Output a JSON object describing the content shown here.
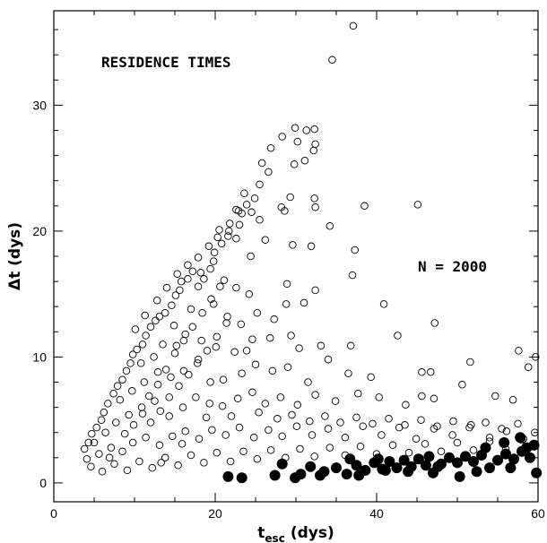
{
  "chart_data": {
    "type": "scatter",
    "title": "",
    "xlabel_main": "t",
    "xlabel_sub": "esc",
    "xlabel_unit": "(dys)",
    "ylabel": "Δt (dys)",
    "xlim": [
      0,
      60
    ],
    "ylim": [
      -1.5,
      37.5
    ],
    "x_ticks": [
      0,
      20,
      40,
      60
    ],
    "y_ticks": [
      0,
      10,
      20,
      30
    ],
    "x_tick_labels": [
      "0",
      "20",
      "40",
      "60"
    ],
    "y_tick_labels": [
      "0",
      "10",
      "20",
      "30"
    ],
    "grid": false,
    "annotations": {
      "residence_label": "RESIDENCE TIMES",
      "n_label": "N = 2000"
    },
    "colors": {
      "ink": "#000000",
      "background": "#ffffff"
    },
    "series": [
      {
        "marker": "open-circle",
        "points": [
          [
            37.1,
            36.3
          ],
          [
            34.5,
            33.6
          ],
          [
            29.9,
            28.2
          ],
          [
            31.3,
            28.0
          ],
          [
            32.3,
            28.1
          ],
          [
            30.2,
            27.1
          ],
          [
            28.3,
            27.5
          ],
          [
            26.9,
            26.6
          ],
          [
            32.4,
            26.9
          ],
          [
            32.2,
            26.4
          ],
          [
            31.1,
            25.6
          ],
          [
            29.8,
            25.3
          ],
          [
            25.8,
            25.4
          ],
          [
            26.6,
            24.7
          ],
          [
            25.5,
            23.7
          ],
          [
            24.9,
            22.6
          ],
          [
            29.3,
            22.7
          ],
          [
            23.6,
            23.0
          ],
          [
            32.3,
            22.6
          ],
          [
            32.4,
            21.9
          ],
          [
            28.2,
            21.9
          ],
          [
            28.6,
            21.6
          ],
          [
            38.5,
            22.0
          ],
          [
            45.1,
            22.1
          ],
          [
            24.5,
            21.5
          ],
          [
            23.3,
            21.4
          ],
          [
            22.6,
            21.7
          ],
          [
            25.5,
            20.9
          ],
          [
            23.0,
            20.5
          ],
          [
            21.7,
            20.0
          ],
          [
            21.6,
            19.6
          ],
          [
            20.8,
            19.0
          ],
          [
            20.3,
            19.5
          ],
          [
            19.9,
            18.3
          ],
          [
            22.6,
            19.4
          ],
          [
            26.2,
            19.3
          ],
          [
            29.6,
            18.9
          ],
          [
            31.9,
            18.8
          ],
          [
            34.2,
            20.4
          ],
          [
            37.3,
            18.5
          ],
          [
            24.4,
            18.0
          ],
          [
            19.8,
            17.6
          ],
          [
            19.4,
            17.0
          ],
          [
            18.2,
            16.7
          ],
          [
            17.2,
            16.8
          ],
          [
            16.6,
            16.2
          ],
          [
            15.8,
            16.0
          ],
          [
            15.6,
            15.3
          ],
          [
            17.9,
            15.6
          ],
          [
            18.6,
            16.2
          ],
          [
            21.1,
            16.1
          ],
          [
            22.6,
            15.5
          ],
          [
            24.2,
            15.0
          ],
          [
            28.9,
            15.8
          ],
          [
            32.4,
            15.3
          ],
          [
            37.0,
            16.5
          ],
          [
            15.1,
            14.9
          ],
          [
            14.6,
            14.1
          ],
          [
            13.8,
            13.5
          ],
          [
            13.1,
            13.2
          ],
          [
            12.6,
            12.9
          ],
          [
            12.0,
            12.4
          ],
          [
            14.9,
            12.5
          ],
          [
            17.0,
            13.8
          ],
          [
            19.8,
            14.2
          ],
          [
            21.5,
            13.2
          ],
          [
            23.2,
            12.6
          ],
          [
            25.2,
            13.5
          ],
          [
            27.3,
            13.0
          ],
          [
            28.8,
            14.2
          ],
          [
            31.0,
            14.3
          ],
          [
            29.4,
            11.7
          ],
          [
            26.8,
            11.5
          ],
          [
            24.6,
            11.4
          ],
          [
            40.9,
            14.2
          ],
          [
            11.4,
            11.7
          ],
          [
            11.0,
            11.0
          ],
          [
            10.3,
            10.6
          ],
          [
            9.8,
            10.2
          ],
          [
            10.8,
            9.5
          ],
          [
            12.4,
            10.0
          ],
          [
            13.5,
            11.0
          ],
          [
            15.2,
            10.9
          ],
          [
            16.3,
            11.8
          ],
          [
            18.3,
            11.3
          ],
          [
            20.1,
            10.8
          ],
          [
            22.4,
            10.4
          ],
          [
            23.9,
            10.5
          ],
          [
            30.4,
            10.7
          ],
          [
            33.1,
            10.9
          ],
          [
            36.8,
            10.9
          ],
          [
            42.6,
            11.7
          ],
          [
            47.2,
            12.7
          ],
          [
            9.5,
            9.5
          ],
          [
            9.0,
            8.9
          ],
          [
            8.5,
            8.2
          ],
          [
            7.9,
            7.7
          ],
          [
            7.4,
            7.1
          ],
          [
            8.2,
            6.6
          ],
          [
            9.7,
            7.3
          ],
          [
            11.2,
            8.0
          ],
          [
            12.9,
            8.8
          ],
          [
            14.5,
            8.4
          ],
          [
            16.1,
            8.9
          ],
          [
            17.8,
            9.5
          ],
          [
            19.4,
            8.0
          ],
          [
            21.0,
            8.2
          ],
          [
            23.3,
            8.7
          ],
          [
            25.0,
            9.4
          ],
          [
            27.1,
            8.9
          ],
          [
            29.0,
            9.2
          ],
          [
            31.5,
            8.0
          ],
          [
            34.0,
            9.8
          ],
          [
            36.5,
            8.7
          ],
          [
            39.3,
            8.4
          ],
          [
            45.6,
            8.8
          ],
          [
            46.7,
            8.8
          ],
          [
            51.6,
            9.6
          ],
          [
            57.6,
            10.5
          ],
          [
            59.7,
            10.0
          ],
          [
            6.7,
            6.3
          ],
          [
            6.2,
            5.6
          ],
          [
            5.9,
            5.0
          ],
          [
            5.3,
            4.4
          ],
          [
            4.7,
            3.9
          ],
          [
            5.0,
            3.2
          ],
          [
            6.4,
            4.0
          ],
          [
            7.7,
            4.8
          ],
          [
            9.3,
            5.4
          ],
          [
            10.9,
            6.0
          ],
          [
            12.5,
            6.5
          ],
          [
            14.3,
            5.3
          ],
          [
            16.0,
            6.0
          ],
          [
            17.6,
            6.8
          ],
          [
            19.3,
            6.3
          ],
          [
            20.9,
            6.1
          ],
          [
            22.8,
            6.7
          ],
          [
            24.6,
            7.2
          ],
          [
            26.2,
            6.3
          ],
          [
            28.1,
            6.8
          ],
          [
            30.2,
            6.2
          ],
          [
            32.4,
            7.0
          ],
          [
            34.9,
            6.5
          ],
          [
            37.7,
            7.1
          ],
          [
            40.3,
            6.8
          ],
          [
            43.6,
            6.2
          ],
          [
            45.6,
            6.9
          ],
          [
            47.1,
            6.7
          ],
          [
            50.6,
            7.8
          ],
          [
            54.7,
            6.9
          ],
          [
            56.9,
            6.6
          ],
          [
            58.8,
            9.2
          ],
          [
            4.3,
            3.2
          ],
          [
            3.8,
            2.7
          ],
          [
            4.1,
            1.9
          ],
          [
            4.6,
            1.3
          ],
          [
            5.6,
            2.3
          ],
          [
            6.9,
            2.0
          ],
          [
            8.5,
            2.5
          ],
          [
            9.8,
            3.2
          ],
          [
            11.4,
            3.6
          ],
          [
            13.1,
            3.0
          ],
          [
            14.7,
            3.7
          ],
          [
            16.3,
            4.1
          ],
          [
            18.0,
            3.5
          ],
          [
            19.6,
            4.2
          ],
          [
            21.3,
            3.8
          ],
          [
            23.0,
            4.4
          ],
          [
            24.8,
            3.6
          ],
          [
            26.6,
            4.2
          ],
          [
            28.3,
            3.7
          ],
          [
            30.1,
            4.5
          ],
          [
            32.0,
            3.8
          ],
          [
            34.0,
            4.3
          ],
          [
            36.1,
            3.6
          ],
          [
            38.3,
            4.5
          ],
          [
            40.6,
            3.8
          ],
          [
            42.8,
            4.4
          ],
          [
            44.9,
            3.5
          ],
          [
            47.1,
            4.3
          ],
          [
            49.4,
            3.8
          ],
          [
            51.7,
            4.6
          ],
          [
            54.0,
            3.6
          ],
          [
            56.1,
            4.1
          ],
          [
            58.2,
            3.5
          ],
          [
            59.6,
            4.0
          ],
          [
            6.0,
            0.9
          ],
          [
            7.5,
            1.5
          ],
          [
            9.1,
            1.0
          ],
          [
            10.6,
            1.7
          ],
          [
            12.2,
            1.2
          ],
          [
            13.8,
            2.0
          ],
          [
            15.4,
            1.4
          ],
          [
            17.0,
            2.2
          ],
          [
            18.6,
            1.6
          ],
          [
            20.2,
            2.4
          ],
          [
            21.9,
            1.7
          ],
          [
            23.5,
            2.5
          ],
          [
            25.2,
            1.9
          ],
          [
            26.9,
            2.6
          ],
          [
            28.7,
            2.0
          ],
          [
            30.5,
            2.7
          ],
          [
            32.3,
            2.1
          ],
          [
            34.2,
            2.8
          ],
          [
            36.1,
            2.2
          ],
          [
            38.0,
            2.9
          ],
          [
            40.0,
            2.3
          ],
          [
            42.0,
            3.0
          ],
          [
            44.0,
            2.4
          ],
          [
            46.0,
            3.1
          ],
          [
            48.0,
            2.5
          ],
          [
            50.0,
            3.2
          ],
          [
            52.0,
            2.6
          ],
          [
            54.0,
            3.3
          ],
          [
            56.0,
            2.7
          ],
          [
            58.0,
            3.4
          ],
          [
            11.8,
            6.9
          ],
          [
            12.9,
            7.8
          ],
          [
            13.9,
            9.0
          ],
          [
            15.0,
            10.3
          ],
          [
            16.1,
            11.3
          ],
          [
            17.2,
            12.4
          ],
          [
            18.4,
            13.5
          ],
          [
            19.5,
            14.6
          ],
          [
            20.6,
            15.6
          ],
          [
            12.0,
            4.8
          ],
          [
            13.2,
            5.7
          ],
          [
            14.3,
            6.8
          ],
          [
            15.5,
            7.7
          ],
          [
            16.7,
            8.6
          ],
          [
            17.9,
            9.8
          ],
          [
            19.0,
            10.5
          ],
          [
            20.2,
            11.6
          ],
          [
            21.4,
            12.7
          ],
          [
            8.8,
            3.9
          ],
          [
            9.9,
            4.6
          ],
          [
            11.0,
            5.5
          ],
          [
            7.1,
            2.8
          ],
          [
            13.3,
            1.6
          ],
          [
            15.9,
            3.1
          ],
          [
            18.9,
            5.2
          ],
          [
            22.0,
            5.3
          ],
          [
            25.4,
            5.6
          ],
          [
            27.7,
            5.1
          ],
          [
            29.5,
            5.4
          ],
          [
            31.7,
            4.9
          ],
          [
            33.6,
            5.3
          ],
          [
            35.5,
            4.8
          ],
          [
            37.5,
            5.2
          ],
          [
            39.5,
            4.7
          ],
          [
            41.5,
            5.1
          ],
          [
            43.5,
            4.6
          ],
          [
            45.5,
            5.0
          ],
          [
            47.5,
            4.5
          ],
          [
            49.5,
            4.9
          ],
          [
            51.5,
            4.4
          ],
          [
            53.5,
            4.8
          ],
          [
            55.5,
            4.3
          ],
          [
            57.5,
            4.7
          ],
          [
            10.1,
            12.2
          ],
          [
            11.3,
            13.3
          ],
          [
            12.8,
            14.5
          ],
          [
            14.0,
            15.5
          ],
          [
            15.3,
            16.6
          ],
          [
            16.6,
            17.3
          ],
          [
            17.9,
            17.9
          ],
          [
            19.2,
            18.8
          ],
          [
            20.5,
            20.1
          ],
          [
            21.8,
            20.6
          ],
          [
            22.9,
            21.6
          ],
          [
            23.9,
            22.1
          ]
        ]
      },
      {
        "marker": "filled-circle",
        "points": [
          [
            21.6,
            0.5
          ],
          [
            23.3,
            0.4
          ],
          [
            27.4,
            0.6
          ],
          [
            28.3,
            1.5
          ],
          [
            30.6,
            0.7
          ],
          [
            31.8,
            1.3
          ],
          [
            33.5,
            0.9
          ],
          [
            35.0,
            1.2
          ],
          [
            36.3,
            0.7
          ],
          [
            37.5,
            1.4
          ],
          [
            38.6,
            1.0
          ],
          [
            39.7,
            1.6
          ],
          [
            40.7,
            1.1
          ],
          [
            41.6,
            1.7
          ],
          [
            42.5,
            1.2
          ],
          [
            43.4,
            1.8
          ],
          [
            44.3,
            1.3
          ],
          [
            45.2,
            1.9
          ],
          [
            46.1,
            1.4
          ],
          [
            47.0,
            0.8
          ],
          [
            48.0,
            1.5
          ],
          [
            49.0,
            2.0
          ],
          [
            50.0,
            1.6
          ],
          [
            51.0,
            2.1
          ],
          [
            52.0,
            1.7
          ],
          [
            53.0,
            2.2
          ],
          [
            54.0,
            1.2
          ],
          [
            55.0,
            1.8
          ],
          [
            56.0,
            2.3
          ],
          [
            57.0,
            1.9
          ],
          [
            58.0,
            2.5
          ],
          [
            59.0,
            2.0
          ],
          [
            59.8,
            0.8
          ],
          [
            55.8,
            3.2
          ],
          [
            57.8,
            3.6
          ],
          [
            53.5,
            2.8
          ],
          [
            58.6,
            2.8
          ],
          [
            59.5,
            3.0
          ],
          [
            56.6,
            1.2
          ],
          [
            47.6,
            1.3
          ],
          [
            43.9,
            0.9
          ],
          [
            40.2,
            1.9
          ],
          [
            36.7,
            1.9
          ],
          [
            33.0,
            0.6
          ],
          [
            29.9,
            0.4
          ],
          [
            52.4,
            0.9
          ],
          [
            50.3,
            0.5
          ],
          [
            46.5,
            2.1
          ],
          [
            41.1,
            1.0
          ],
          [
            37.8,
            0.6
          ]
        ]
      }
    ]
  }
}
